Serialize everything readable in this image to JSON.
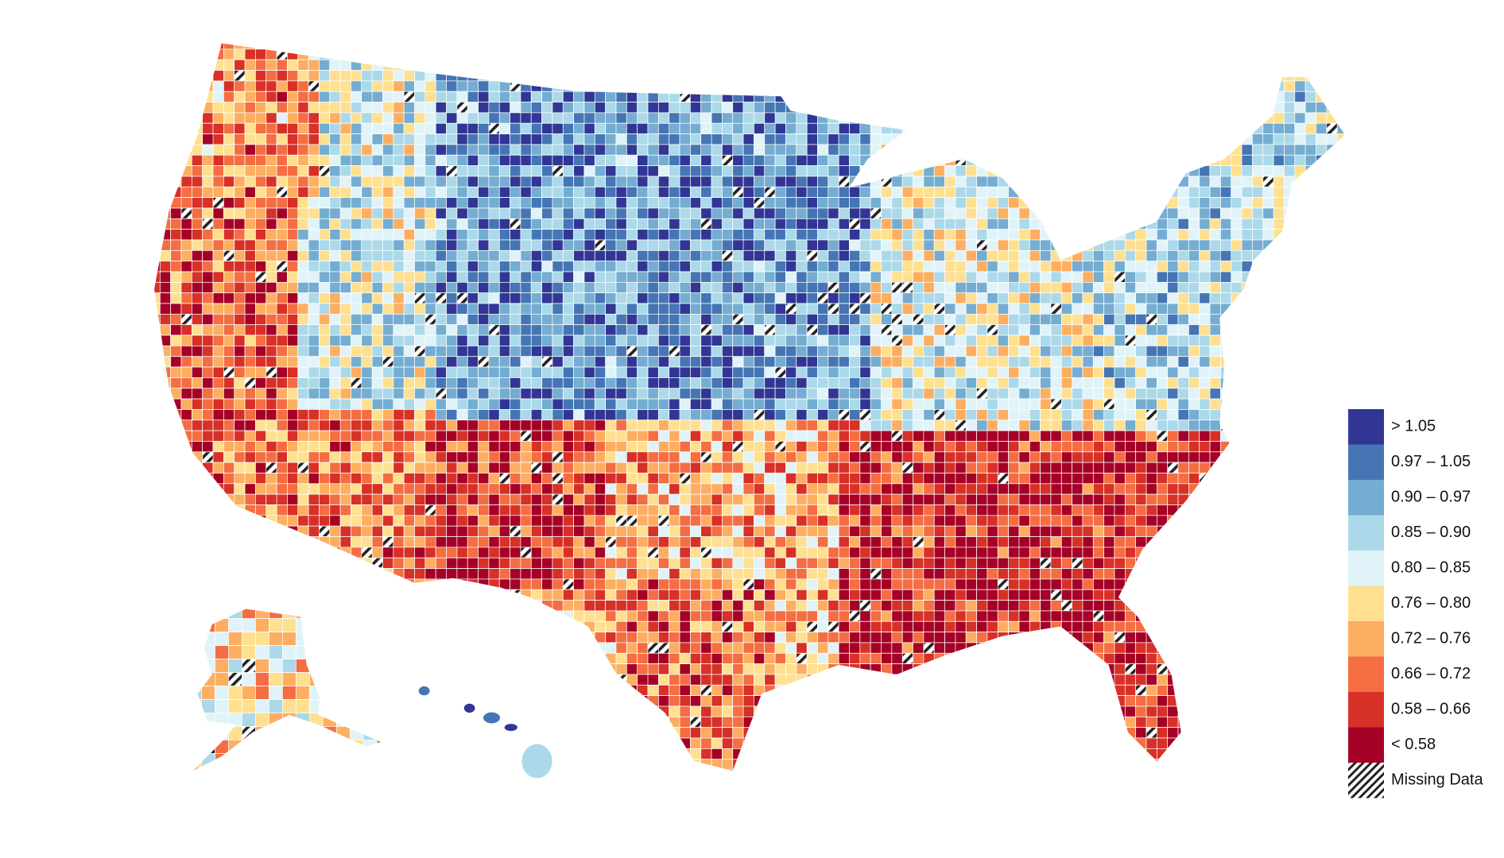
{
  "legend": {
    "bins": [
      {
        "label": "> 1.05",
        "color": "#313695"
      },
      {
        "label": "0.97 – 1.05",
        "color": "#4575b4"
      },
      {
        "label": "0.90 – 0.97",
        "color": "#74add1"
      },
      {
        "label": "0.85 – 0.90",
        "color": "#abd9e9"
      },
      {
        "label": "0.80 – 0.85",
        "color": "#e0f3f8"
      },
      {
        "label": "0.76 – 0.80",
        "color": "#fee090"
      },
      {
        "label": "0.72 – 0.76",
        "color": "#fdae61"
      },
      {
        "label": "0.66 – 0.72",
        "color": "#f46d43"
      },
      {
        "label": "0.58 – 0.66",
        "color": "#d73027"
      },
      {
        "label": "< 0.58",
        "color": "#a50026"
      }
    ],
    "missing_label": "Missing Data"
  }
}
